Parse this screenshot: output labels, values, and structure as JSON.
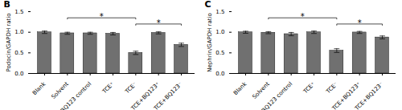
{
  "chart_data": [
    {
      "type": "bar",
      "title": "B",
      "ylabel": "Podocin/GAPDH ratio",
      "categories": [
        "Blank",
        "Solvent",
        "BQ123 control",
        "TCE⁺",
        "TCE⁻",
        "TCE+BQ123⁺",
        "TCE+BQ123⁻"
      ],
      "values": [
        1.0,
        0.975,
        0.975,
        0.965,
        0.5,
        0.985,
        0.695
      ],
      "errors": [
        0.03,
        0.025,
        0.025,
        0.03,
        0.04,
        0.025,
        0.04
      ],
      "color": "#707070",
      "ylim": [
        0.0,
        1.5
      ],
      "yticks": [
        {
          "value": 0.0,
          "label": "0.0"
        },
        0.5,
        {
          "value": 1.0,
          "label": "1.0"
        },
        1.5
      ],
      "annotations": [
        {
          "text": "*",
          "x_from": "Solvent",
          "x_to": "TCE⁻",
          "y": 1.35
        },
        {
          "text": "*",
          "x_from": "TCE⁻",
          "x_to": "TCE+BQ123⁻",
          "y": 1.2
        }
      ]
    },
    {
      "type": "bar",
      "title": "C",
      "ylabel": "Nephrin/GAPDH ratio",
      "categories": [
        "Blank",
        "Solvent",
        "BQ123 control",
        "TCE⁺",
        "TCE⁻",
        "TCE+BQ123⁺",
        "TCE+BQ123⁻"
      ],
      "values": [
        1.0,
        0.99,
        0.955,
        1.0,
        0.555,
        0.995,
        0.875
      ],
      "errors": [
        0.025,
        0.025,
        0.04,
        0.03,
        0.045,
        0.025,
        0.035
      ],
      "color": "#707070",
      "ylim": [
        0.0,
        1.5
      ],
      "yticks": [
        {
          "value": 0.0,
          "label": "0.0"
        },
        0.5,
        {
          "value": 1.0,
          "label": "1.0"
        },
        1.5
      ],
      "annotations": [
        {
          "text": "*",
          "x_from": "Solvent",
          "x_to": "TCE⁻",
          "y": 1.35
        },
        {
          "text": "*",
          "x_from": "TCE⁻",
          "x_to": "TCE+BQ123⁻",
          "y": 1.2
        }
      ]
    }
  ]
}
